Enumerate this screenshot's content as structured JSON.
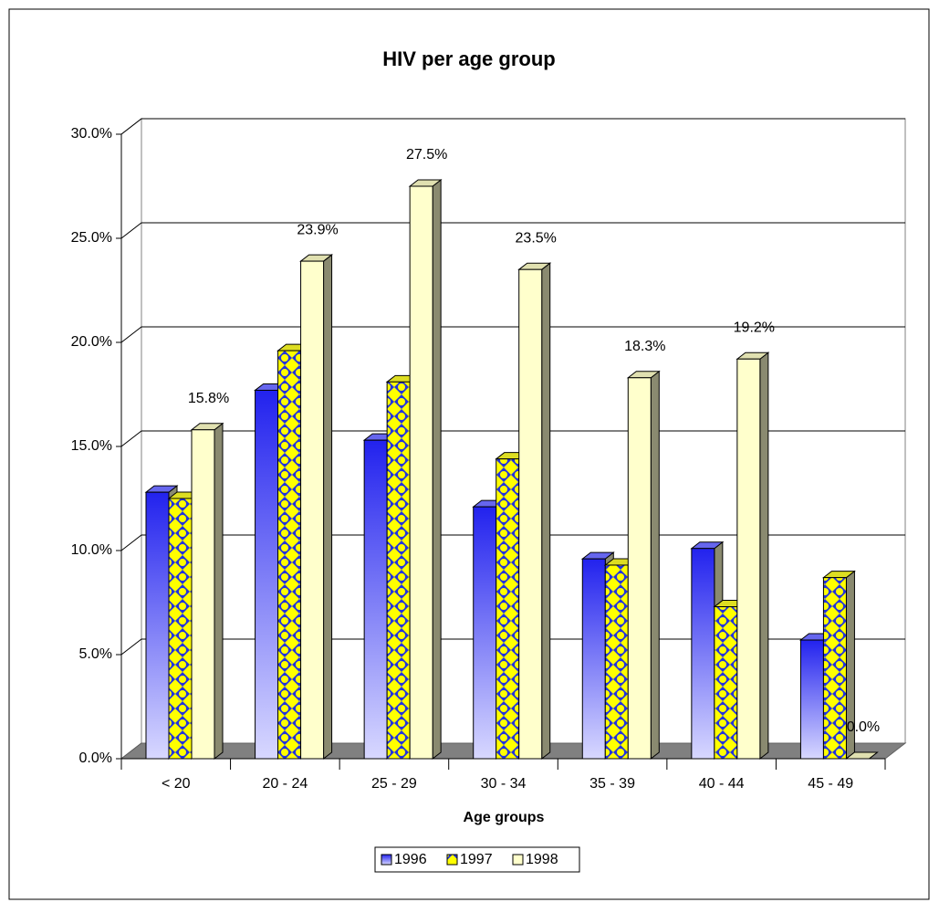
{
  "chart_data": {
    "type": "bar3d",
    "title": "HIV per age group",
    "x_label": "Age groups",
    "categories": [
      "< 20",
      "20 - 24",
      "25 - 29",
      "30 - 34",
      "35 - 39",
      "40 - 44",
      "45 - 49"
    ],
    "series": [
      {
        "name": "1996",
        "color": "#3333ff",
        "values": [
          12.8,
          17.7,
          15.3,
          12.1,
          9.6,
          10.1,
          5.7
        ]
      },
      {
        "name": "1997",
        "color": "#ffff00",
        "values": [
          12.5,
          19.6,
          18.1,
          14.4,
          9.3,
          7.3,
          8.7
        ]
      },
      {
        "name": "1998",
        "color": "#ffffcc",
        "values": [
          15.8,
          23.9,
          27.5,
          23.5,
          18.3,
          19.2,
          0.0
        ],
        "value_labels": [
          "15.8%",
          "23.9%",
          "27.5%",
          "23.5%",
          "18.3%",
          "19.2%",
          "0.0%"
        ]
      }
    ],
    "ylim": [
      0,
      30
    ],
    "yticks": [
      {
        "value": 0,
        "label": "0.0%"
      },
      {
        "value": 5,
        "label": "5.0%"
      },
      {
        "value": 10,
        "label": "10.0%"
      },
      {
        "value": 15,
        "label": "15.0%"
      },
      {
        "value": 20,
        "label": "20.0%"
      },
      {
        "value": 25,
        "label": "25.0%"
      },
      {
        "value": 30,
        "label": "30.0%"
      }
    ],
    "grid": true,
    "legend": "bottom"
  }
}
